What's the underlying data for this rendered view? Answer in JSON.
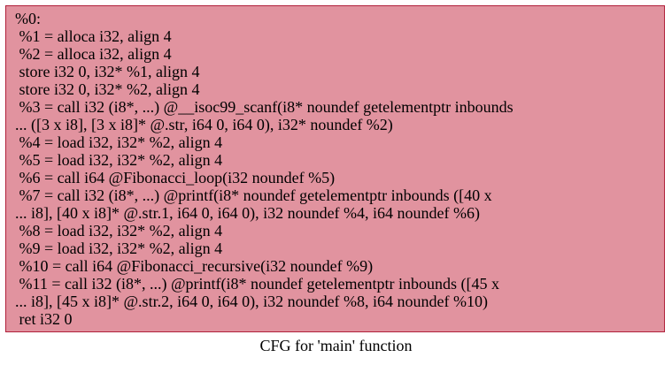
{
  "node": {
    "lines": [
      "%0:",
      " %1 = alloca i32, align 4",
      " %2 = alloca i32, align 4",
      " store i32 0, i32* %1, align 4",
      " store i32 0, i32* %2, align 4",
      " %3 = call i32 (i8*, ...) @__isoc99_scanf(i8* noundef getelementptr inbounds",
      "... ([3 x i8], [3 x i8]* @.str, i64 0, i64 0), i32* noundef %2)",
      " %4 = load i32, i32* %2, align 4",
      " %5 = load i32, i32* %2, align 4",
      " %6 = call i64 @Fibonacci_loop(i32 noundef %5)",
      " %7 = call i32 (i8*, ...) @printf(i8* noundef getelementptr inbounds ([40 x",
      "... i8], [40 x i8]* @.str.1, i64 0, i64 0), i32 noundef %4, i64 noundef %6)",
      " %8 = load i32, i32* %2, align 4",
      " %9 = load i32, i32* %2, align 4",
      " %10 = call i64 @Fibonacci_recursive(i32 noundef %9)",
      " %11 = call i32 (i8*, ...) @printf(i8* noundef getelementptr inbounds ([45 x",
      "... i8], [45 x i8]* @.str.2, i64 0, i64 0), i32 noundef %8, i64 noundef %10)",
      " ret i32 0"
    ]
  },
  "caption": "CFG for 'main' function"
}
